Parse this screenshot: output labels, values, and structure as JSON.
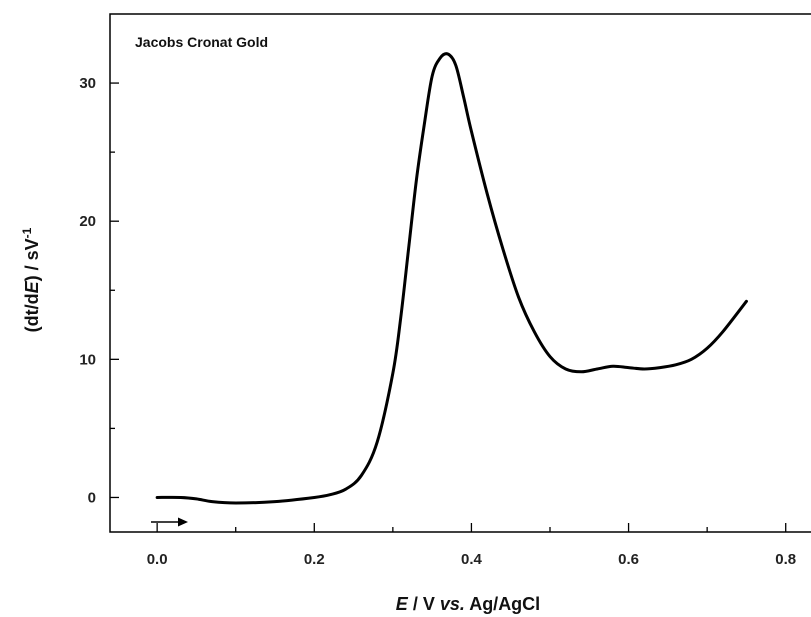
{
  "chart_data": {
    "type": "line",
    "annotation": "Jacobs Cronat Gold",
    "xlabel": {
      "italic": "E",
      "plain": " / V ",
      "italic2": "vs.",
      "plain2": " Ag/AgCl"
    },
    "ylabel": {
      "pre": "(dt/d",
      "italic": "E",
      "post": ") / sV",
      "sup": "-1"
    },
    "xlim": [
      -0.06,
      0.85
    ],
    "ylim": [
      -2.5,
      35
    ],
    "x_ticks": [
      0.0,
      0.2,
      0.4,
      0.6,
      0.8
    ],
    "x_tick_labels": [
      "0.0",
      "0.2",
      "0.4",
      "0.6",
      "0.8"
    ],
    "y_ticks": [
      0,
      10,
      20,
      30
    ],
    "y_tick_labels": [
      "0",
      "10",
      "20",
      "30"
    ],
    "sweep_direction": "right-arrow",
    "grid": false,
    "line_color": "#000000",
    "series": [
      {
        "x": [
          0.0,
          0.03,
          0.05,
          0.07,
          0.1,
          0.15,
          0.2,
          0.22,
          0.24,
          0.26,
          0.28,
          0.3,
          0.31,
          0.32,
          0.33,
          0.34,
          0.35,
          0.36,
          0.37,
          0.38,
          0.39,
          0.4,
          0.42,
          0.44,
          0.46,
          0.48,
          0.5,
          0.52,
          0.54,
          0.56,
          0.58,
          0.6,
          0.62,
          0.64,
          0.66,
          0.68,
          0.7,
          0.72,
          0.75
        ],
        "y": [
          0.0,
          0.0,
          -0.1,
          -0.3,
          -0.4,
          -0.3,
          0.0,
          0.2,
          0.6,
          1.6,
          4.0,
          9.0,
          13.0,
          18.0,
          23.0,
          27.0,
          30.5,
          31.8,
          32.1,
          31.3,
          29.0,
          26.5,
          22.0,
          18.0,
          14.5,
          12.0,
          10.2,
          9.3,
          9.1,
          9.3,
          9.5,
          9.4,
          9.3,
          9.4,
          9.6,
          10.0,
          10.8,
          12.0,
          14.2
        ]
      }
    ]
  }
}
